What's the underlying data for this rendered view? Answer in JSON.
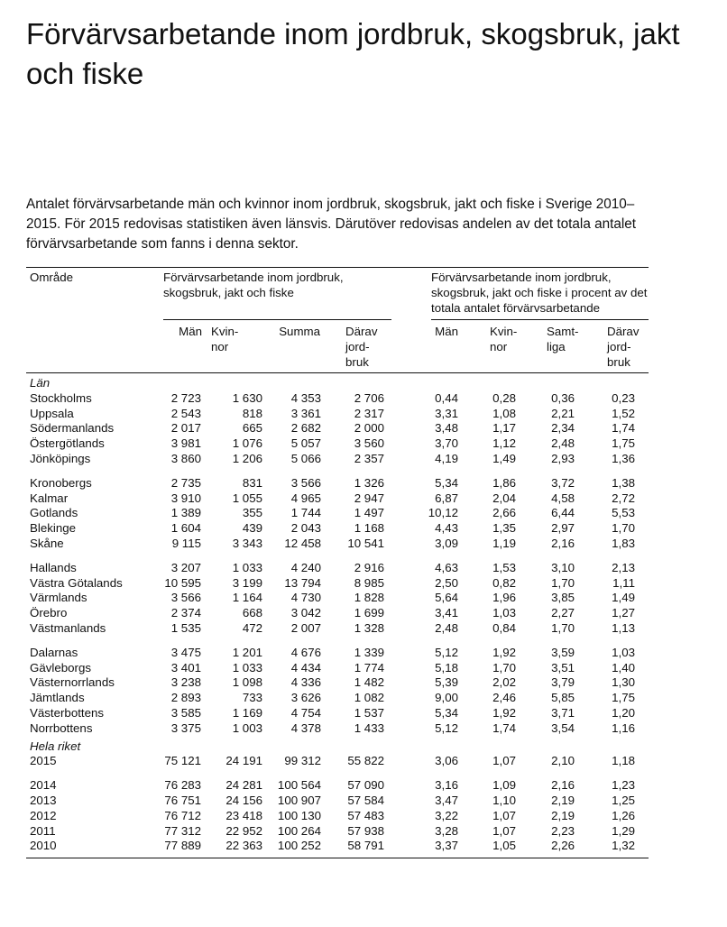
{
  "title": "Förvärvsarbetande inom jordbruk, skogsbruk, jakt och fiske",
  "description": "Antalet förvärvsarbetande män och kvinnor inom jordbruk, skogsbruk, jakt och fiske i Sverige 2010–2015. För 2015 redovisas statistiken även länsvis. Därutöver redovisas andelen av det totala antalet förvärvsarbetande som fanns i denna sektor.",
  "table": {
    "area_header": "Område",
    "group_headers": [
      "Förvärvsarbetande inom jordbruk, skogsbruk, jakt och fiske",
      "Förvärvsarbetande inom jordbruk, skogsbruk, jakt och fiske  i procent av det totala antalet förvärvsarbetande"
    ],
    "columns": [
      [
        "Män"
      ],
      [
        "Kvin-",
        "nor"
      ],
      [
        "Summa"
      ],
      [
        "Därav",
        "jord-",
        "bruk"
      ],
      [
        "Män"
      ],
      [
        "Kvin-",
        "nor"
      ],
      [
        "Samt-",
        "liga"
      ],
      [
        "Därav",
        "jord-",
        "bruk"
      ]
    ],
    "sections": [
      {
        "label": "Län",
        "groups": [
          [
            {
              "name": "Stockholms",
              "values": [
                "2 723",
                "1 630",
                "4 353",
                "2 706",
                "0,44",
                "0,28",
                "0,36",
                "0,23"
              ]
            },
            {
              "name": "Uppsala",
              "values": [
                "2 543",
                "818",
                "3 361",
                "2 317",
                "3,31",
                "1,08",
                "2,21",
                "1,52"
              ]
            },
            {
              "name": "Södermanlands",
              "values": [
                "2 017",
                "665",
                "2 682",
                "2 000",
                "3,48",
                "1,17",
                "2,34",
                "1,74"
              ]
            },
            {
              "name": "Östergötlands",
              "values": [
                "3 981",
                "1 076",
                "5 057",
                "3 560",
                "3,70",
                "1,12",
                "2,48",
                "1,75"
              ]
            },
            {
              "name": "Jönköpings",
              "values": [
                "3 860",
                "1 206",
                "5 066",
                "2 357",
                "4,19",
                "1,49",
                "2,93",
                "1,36"
              ]
            }
          ],
          [
            {
              "name": "Kronobergs",
              "values": [
                "2 735",
                "831",
                "3 566",
                "1 326",
                "5,34",
                "1,86",
                "3,72",
                "1,38"
              ]
            },
            {
              "name": "Kalmar",
              "values": [
                "3 910",
                "1 055",
                "4 965",
                "2 947",
                "6,87",
                "2,04",
                "4,58",
                "2,72"
              ]
            },
            {
              "name": "Gotlands",
              "values": [
                "1 389",
                "355",
                "1 744",
                "1 497",
                "10,12",
                "2,66",
                "6,44",
                "5,53"
              ]
            },
            {
              "name": "Blekinge",
              "values": [
                "1 604",
                "439",
                "2 043",
                "1 168",
                "4,43",
                "1,35",
                "2,97",
                "1,70"
              ]
            },
            {
              "name": "Skåne",
              "values": [
                "9 115",
                "3 343",
                "12 458",
                "10 541",
                "3,09",
                "1,19",
                "2,16",
                "1,83"
              ]
            }
          ],
          [
            {
              "name": "Hallands",
              "values": [
                "3 207",
                "1 033",
                "4 240",
                "2 916",
                "4,63",
                "1,53",
                "3,10",
                "2,13"
              ]
            },
            {
              "name": "Västra Götalands",
              "values": [
                "10 595",
                "3 199",
                "13 794",
                "8 985",
                "2,50",
                "0,82",
                "1,70",
                "1,11"
              ]
            },
            {
              "name": "Värmlands",
              "values": [
                "3 566",
                "1 164",
                "4 730",
                "1 828",
                "5,64",
                "1,96",
                "3,85",
                "1,49"
              ]
            },
            {
              "name": "Örebro",
              "values": [
                "2 374",
                "668",
                "3 042",
                "1 699",
                "3,41",
                "1,03",
                "2,27",
                "1,27"
              ]
            },
            {
              "name": "Västmanlands",
              "values": [
                "1 535",
                "472",
                "2 007",
                "1 328",
                "2,48",
                "0,84",
                "1,70",
                "1,13"
              ]
            }
          ],
          [
            {
              "name": "Dalarnas",
              "values": [
                "3 475",
                "1 201",
                "4 676",
                "1 339",
                "5,12",
                "1,92",
                "3,59",
                "1,03"
              ]
            },
            {
              "name": "Gävleborgs",
              "values": [
                "3 401",
                "1 033",
                "4 434",
                "1 774",
                "5,18",
                "1,70",
                "3,51",
                "1,40"
              ]
            },
            {
              "name": "Västernorrlands",
              "values": [
                "3 238",
                "1 098",
                "4 336",
                "1 482",
                "5,39",
                "2,02",
                "3,79",
                "1,30"
              ]
            },
            {
              "name": "Jämtlands",
              "values": [
                "2 893",
                "733",
                "3 626",
                "1 082",
                "9,00",
                "2,46",
                "5,85",
                "1,75"
              ]
            },
            {
              "name": "Västerbottens",
              "values": [
                "3 585",
                "1 169",
                "4 754",
                "1 537",
                "5,34",
                "1,92",
                "3,71",
                "1,20"
              ]
            },
            {
              "name": "Norrbottens",
              "values": [
                "3 375",
                "1 003",
                "4 378",
                "1 433",
                "5,12",
                "1,74",
                "3,54",
                "1,16"
              ]
            }
          ]
        ]
      },
      {
        "label": "Hela riket",
        "groups": [
          [
            {
              "name": "2015",
              "values": [
                "75 121",
                "24 191",
                "99 312",
                "55 822",
                "3,06",
                "1,07",
                "2,10",
                "1,18"
              ]
            }
          ],
          [
            {
              "name": "2014",
              "values": [
                "76 283",
                "24 281",
                "100 564",
                "57 090",
                "3,16",
                "1,09",
                "2,16",
                "1,23"
              ]
            },
            {
              "name": "2013",
              "values": [
                "76 751",
                "24 156",
                "100 907",
                "57 584",
                "3,47",
                "1,10",
                "2,19",
                "1,25"
              ]
            },
            {
              "name": "2012",
              "values": [
                "76 712",
                "23 418",
                "100 130",
                "57 483",
                "3,22",
                "1,07",
                "2,19",
                "1,26"
              ]
            },
            {
              "name": "2011",
              "values": [
                "77 312",
                "22 952",
                "100 264",
                "57 938",
                "3,28",
                "1,07",
                "2,23",
                "1,29"
              ]
            },
            {
              "name": "2010",
              "values": [
                "77 889",
                "22 363",
                "100 252",
                "58 791",
                "3,37",
                "1,05",
                "2,26",
                "1,32"
              ]
            }
          ]
        ]
      }
    ]
  }
}
